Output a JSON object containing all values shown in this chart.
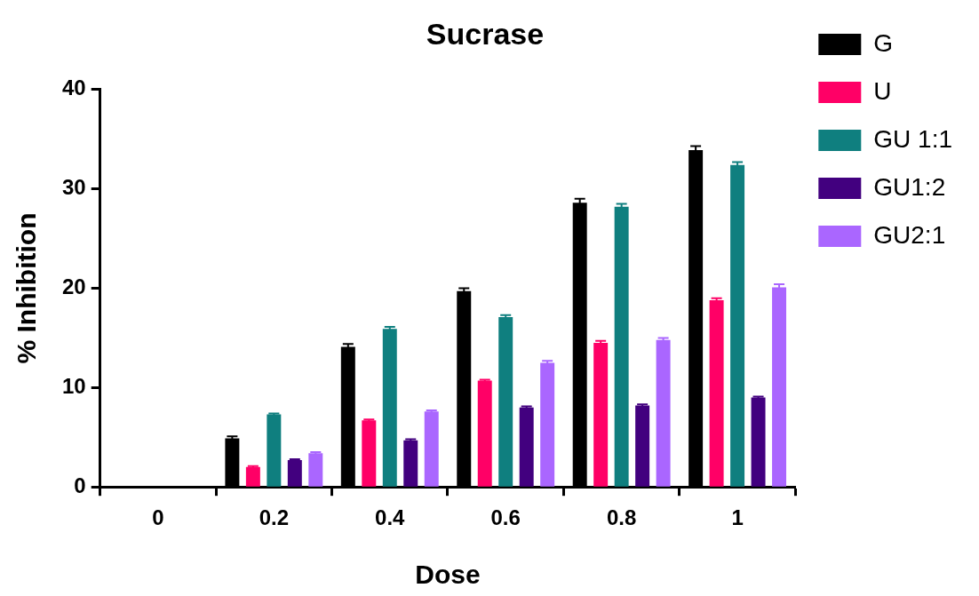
{
  "chart_data": {
    "type": "bar",
    "title": "Sucrase",
    "xlabel": "Dose",
    "ylabel": "% Inhibition",
    "categories": [
      "0",
      "0.2",
      "0.4",
      "0.6",
      "0.8",
      "1"
    ],
    "series": [
      {
        "name": "G",
        "color": "#000000",
        "values": [
          null,
          4.9,
          14.1,
          19.7,
          28.6,
          33.9
        ],
        "errors": [
          null,
          0.2,
          0.3,
          0.3,
          0.4,
          0.4
        ]
      },
      {
        "name": "U",
        "color": "#ff0066",
        "values": [
          null,
          2.0,
          6.7,
          10.7,
          14.5,
          18.8
        ],
        "errors": [
          null,
          0.1,
          0.1,
          0.1,
          0.2,
          0.2
        ]
      },
      {
        "name": "GU 1:1",
        "color": "#0f7f7f",
        "values": [
          null,
          7.3,
          15.9,
          17.1,
          28.2,
          32.4
        ],
        "errors": [
          null,
          0.1,
          0.2,
          0.2,
          0.3,
          0.3
        ]
      },
      {
        "name": "GU1:2",
        "color": "#42007f",
        "values": [
          null,
          2.7,
          4.7,
          8.0,
          8.2,
          9.0
        ],
        "errors": [
          null,
          0.1,
          0.1,
          0.1,
          0.1,
          0.1
        ]
      },
      {
        "name": "GU2:1",
        "color": "#aa66ff",
        "values": [
          null,
          3.4,
          7.6,
          12.5,
          14.8,
          20.1
        ],
        "errors": [
          null,
          0.1,
          0.1,
          0.2,
          0.2,
          0.3
        ]
      }
    ],
    "ylim": [
      0,
      40
    ],
    "yticks": [
      0,
      10,
      20,
      30,
      40
    ],
    "grid": false,
    "legend": "right"
  }
}
